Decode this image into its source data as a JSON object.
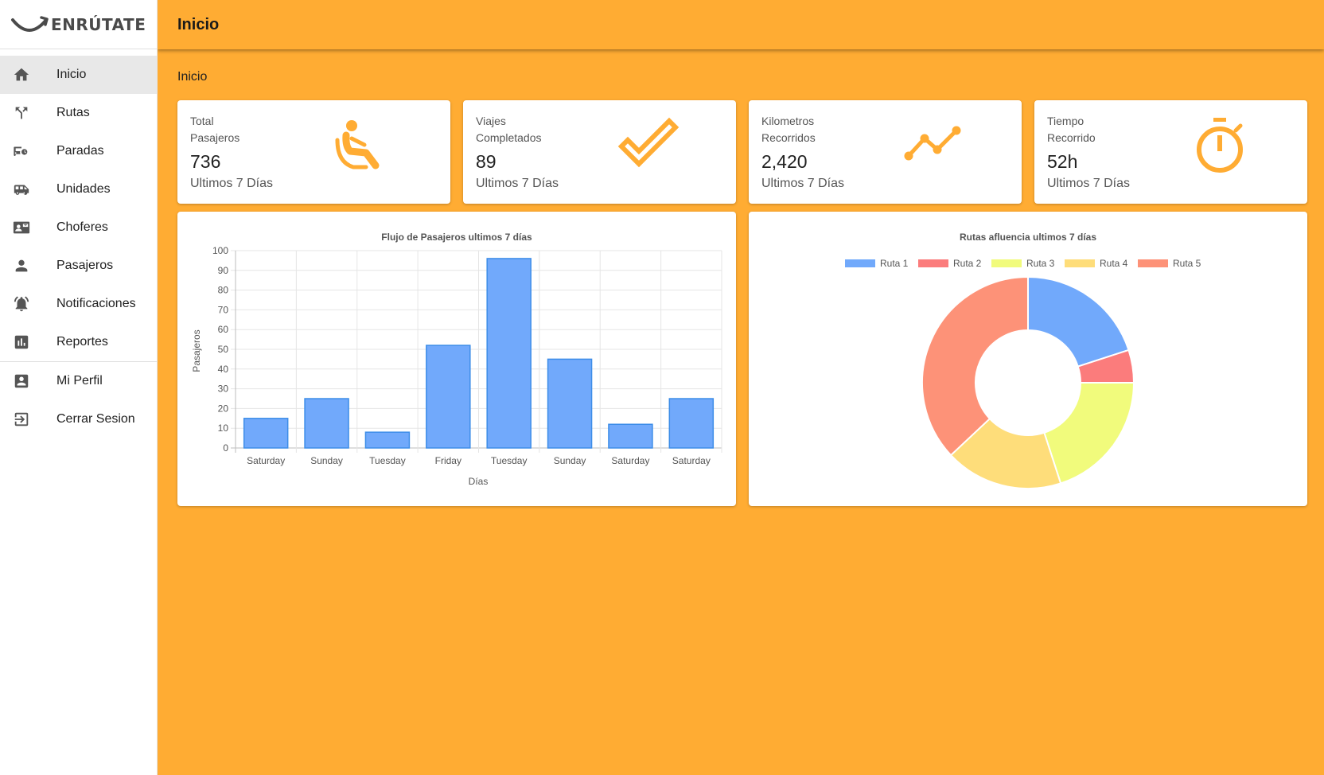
{
  "brand": {
    "name": "ENRÚTATE"
  },
  "header": {
    "title": "Inicio"
  },
  "breadcrumb": "Inicio",
  "sidebar": {
    "items": [
      {
        "label": "Inicio",
        "icon": "home-icon",
        "active": true
      },
      {
        "label": "Rutas",
        "icon": "route-split-icon"
      },
      {
        "label": "Paradas",
        "icon": "bus-stop-icon"
      },
      {
        "label": "Unidades",
        "icon": "van-icon"
      },
      {
        "label": "Choferes",
        "icon": "contact-card-icon"
      },
      {
        "label": "Pasajeros",
        "icon": "person-icon"
      },
      {
        "label": "Notificaciones",
        "icon": "alarm-bell-icon"
      },
      {
        "label": "Reportes",
        "icon": "bar-chart-icon"
      }
    ],
    "bottom_items": [
      {
        "label": "Mi Perfil",
        "icon": "account-box-icon"
      },
      {
        "label": "Cerrar Sesion",
        "icon": "logout-icon"
      }
    ]
  },
  "stats": [
    {
      "label_line1": "Total",
      "label_line2": "Pasajeros",
      "value": "736",
      "sub": "Ultimos 7 Días",
      "icon": "seated-passenger-icon",
      "icon_color": "#ffac33"
    },
    {
      "label_line1": "Viajes",
      "label_line2": "Completados",
      "value": "89",
      "sub": "Ultimos 7 Días",
      "icon": "checkmark-icon",
      "icon_color": "#ffac33"
    },
    {
      "label_line1": "Kilometros",
      "label_line2": "Recorridos",
      "value": "2,420",
      "sub": "Ultimos 7 Días",
      "icon": "trend-line-icon",
      "icon_color": "#ffac33"
    },
    {
      "label_line1": "Tiempo",
      "label_line2": "Recorrido",
      "value": "52h",
      "sub": "Ultimos 7 Días",
      "icon": "stopwatch-icon",
      "icon_color": "#ffac33"
    }
  ],
  "chart_data": [
    {
      "type": "bar",
      "title": "Flujo de Pasajeros ultimos 7 días",
      "categories": [
        "Saturday",
        "Sunday",
        "Tuesday",
        "Friday",
        "Tuesday",
        "Sunday",
        "Saturday",
        "Saturday"
      ],
      "values": [
        15,
        25,
        8,
        52,
        96,
        45,
        12,
        25
      ],
      "xlabel": "Días",
      "ylabel": "Pasajeros",
      "ylim": [
        0,
        100
      ],
      "yticks": [
        0,
        10,
        20,
        30,
        40,
        50,
        60,
        70,
        80,
        90,
        100
      ],
      "grid": true,
      "bar_color": "#71a9fb",
      "bar_border": "#3d8de8"
    },
    {
      "type": "pie",
      "title": "Rutas afluencia ultimos 7 días",
      "labels": [
        "Ruta 1",
        "Ruta 2",
        "Ruta 3",
        "Ruta 4",
        "Ruta 5"
      ],
      "values": [
        20,
        5,
        20,
        18,
        37
      ],
      "colors": [
        "#71a9fb",
        "#fb7c7c",
        "#f1fb7c",
        "#fedd7a",
        "#fd9278"
      ],
      "legend": "top",
      "donut": true
    }
  ]
}
